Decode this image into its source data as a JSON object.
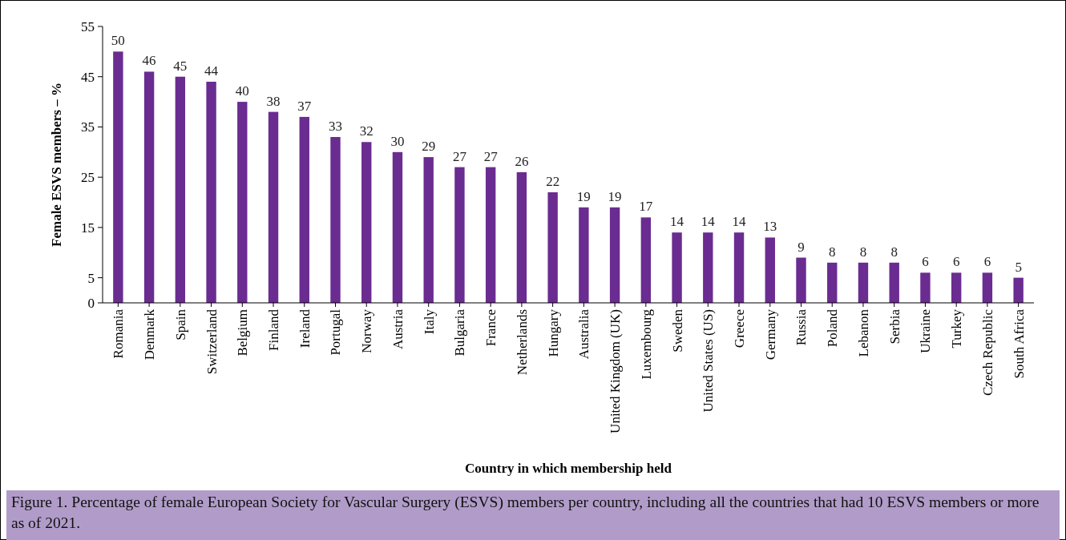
{
  "chart_data": {
    "type": "bar",
    "xlabel": "Country in which membership held",
    "ylabel": "Female ESVS members – %",
    "categories": [
      "Romania",
      "Denmark",
      "Spain",
      "Switzerland",
      "Belgium",
      "Finland",
      "Ireland",
      "Portugal",
      "Norway",
      "Austria",
      "Italy",
      "Bulgaria",
      "France",
      "Netherlands",
      "Hungary",
      "Australia",
      "United Kingdom (UK)",
      "Luxembourg",
      "Sweden",
      "United States (US)",
      "Greece",
      "Germany",
      "Russia",
      "Poland",
      "Lebanon",
      "Serbia",
      "Ukraine",
      "Turkey",
      "Czech Republic",
      "South Africa"
    ],
    "values": [
      50,
      46,
      45,
      44,
      40,
      38,
      37,
      33,
      32,
      30,
      29,
      27,
      27,
      26,
      22,
      19,
      19,
      17,
      14,
      14,
      14,
      13,
      9,
      8,
      8,
      8,
      6,
      6,
      6,
      5
    ],
    "color": "#6a2c91",
    "ylim": [
      0,
      55
    ],
    "yticks": [
      0,
      5,
      15,
      25,
      35,
      45,
      55
    ],
    "data_labels": true,
    "grid": false,
    "annotations": [
      "Figure 1. Percentage of female European Society for Vascular Surgery (ESVS) members per country, including all the countries that had 10 ESVS members or more as of 2021."
    ]
  }
}
